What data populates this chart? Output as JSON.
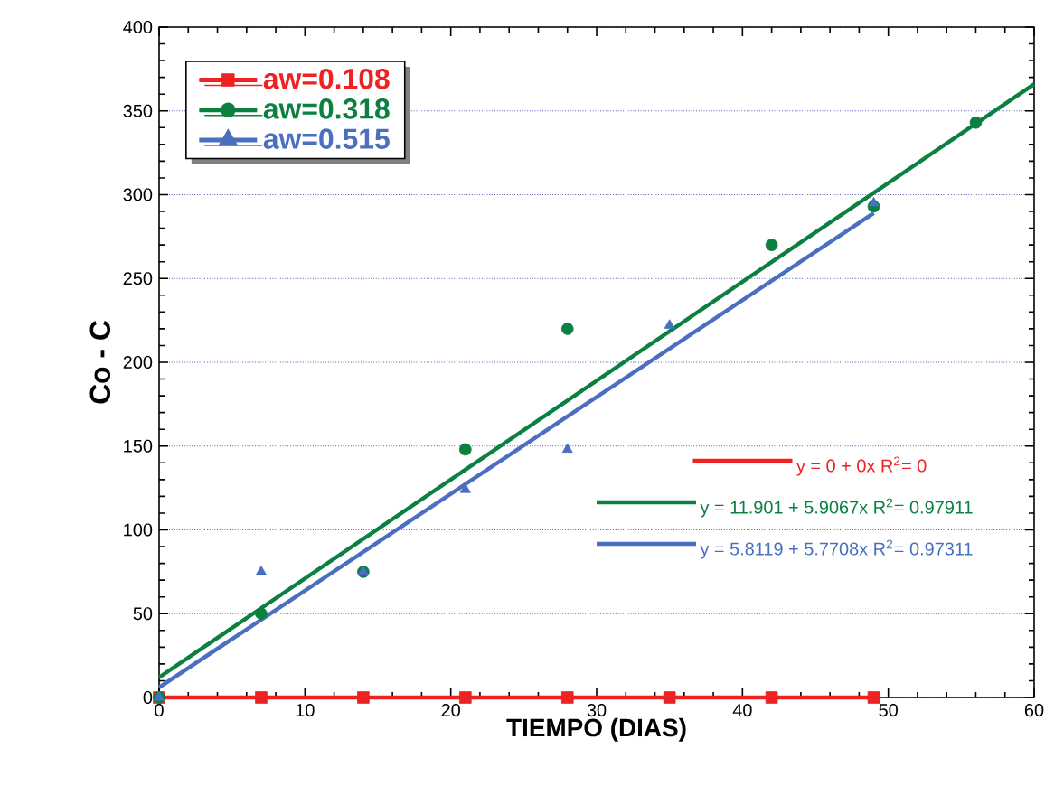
{
  "chart_data": {
    "type": "scatter",
    "xlabel": "TIEMPO (DIAS)",
    "ylabel": "Co - C",
    "xlim": [
      0,
      60
    ],
    "xticks": [
      0,
      10,
      20,
      30,
      40,
      50,
      60
    ],
    "ylim": [
      0,
      400
    ],
    "yticks": [
      0,
      50,
      100,
      150,
      200,
      250,
      300,
      350,
      400
    ],
    "grid": "y",
    "legend": "top left",
    "series": [
      {
        "name": "aw=0.108",
        "color": "#ee2222",
        "marker": "square",
        "x": [
          0,
          7,
          14,
          21,
          28,
          35,
          42,
          49
        ],
        "values": [
          0,
          0,
          0,
          0,
          0,
          0,
          0,
          0
        ]
      },
      {
        "name": "aw=0.318",
        "color": "#0b8040",
        "marker": "circle",
        "x": [
          0,
          7,
          14,
          21,
          28,
          42,
          49,
          56
        ],
        "values": [
          0,
          50,
          75,
          148,
          220,
          270,
          293,
          343
        ]
      },
      {
        "name": "aw=0.515",
        "color": "#4a6fc0",
        "marker": "triangle",
        "x": [
          0,
          7,
          14,
          21,
          28,
          35,
          49
        ],
        "values": [
          0,
          75,
          75,
          124,
          148,
          222,
          295
        ]
      },
      {
        "type": "line",
        "color": "#ee2222",
        "x": [
          0,
          49
        ],
        "values": [
          0,
          0
        ]
      },
      {
        "type": "line",
        "color": "#0b8040",
        "x": [
          0,
          60
        ],
        "values": [
          12,
          366
        ]
      },
      {
        "type": "line",
        "color": "#4a6fc0",
        "x": [
          0,
          49
        ],
        "values": [
          6,
          289
        ]
      }
    ],
    "annotations": [
      "y = 0 + 0x   R$^{2}$= 0",
      "y = 11.901 + 5.9067x   R$^{2}$= 0.97911",
      "y = 5.8119 + 5.7708x   R$^{2}$= 0.97311"
    ]
  }
}
